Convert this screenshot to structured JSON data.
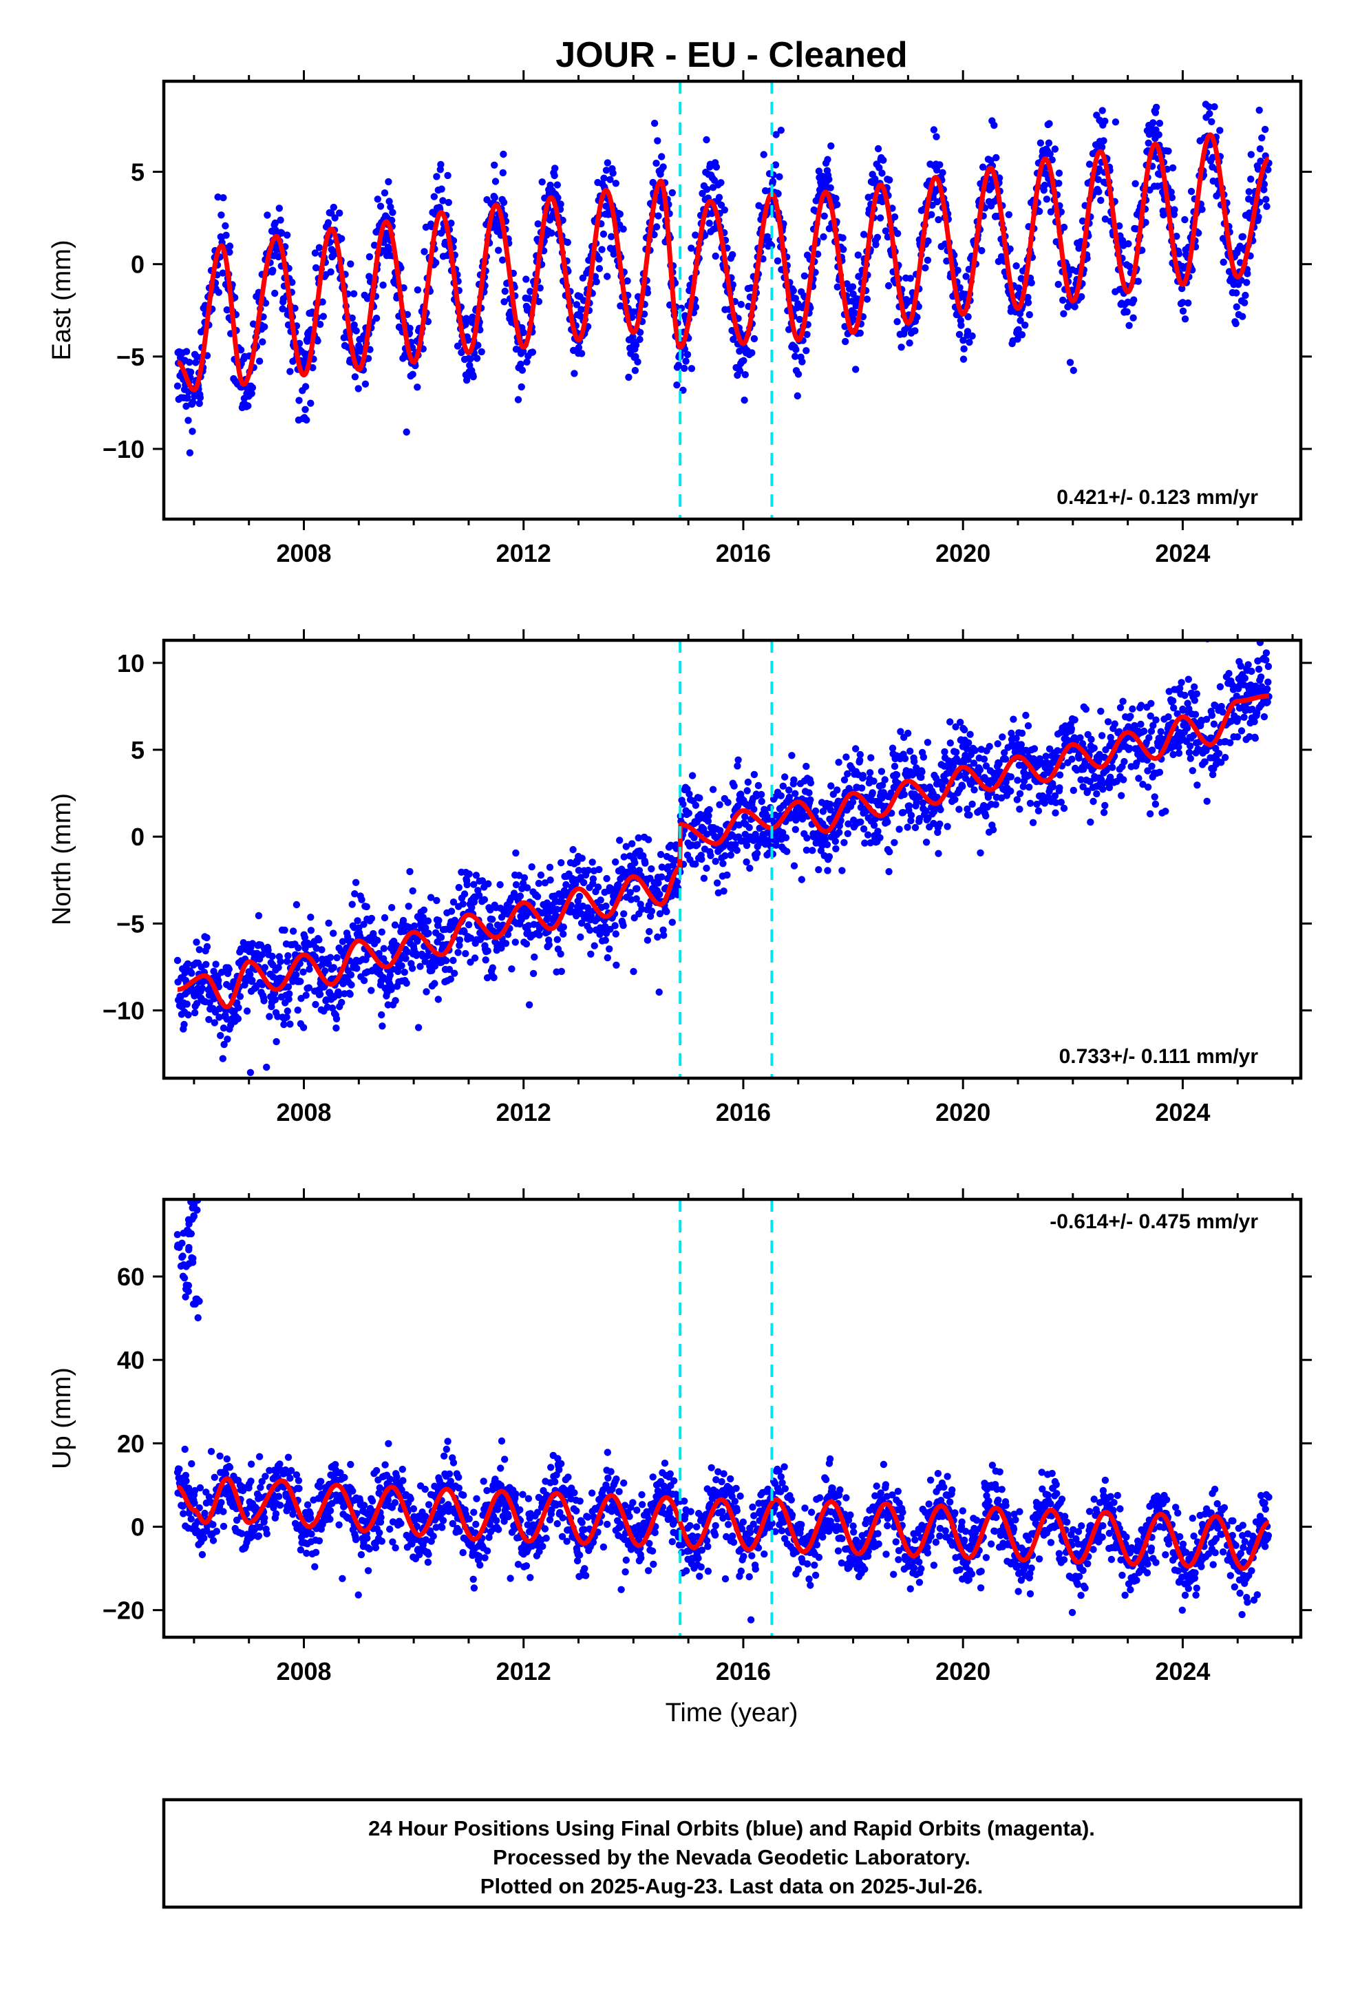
{
  "title": "JOUR  - EU - Cleaned",
  "xlabel": "Time (year)",
  "footer": {
    "lines": [
      "24 Hour Positions Using Final Orbits (blue) and Rapid Orbits (magenta).",
      "Processed by the Nevada Geodetic Laboratory.",
      "Plotted on 2025-Aug-23. Last data on 2025-Jul-26."
    ]
  },
  "colors": {
    "data": "#0000ff",
    "model": "#ff0000",
    "step": "#00e5ee",
    "frame": "#000000"
  },
  "chart_data": [
    {
      "type": "scatter",
      "ylabel": "East (mm)",
      "xlim": [
        2005.45,
        2026.15
      ],
      "ylim": [
        -13.8,
        9.9
      ],
      "xticks": [
        2008,
        2012,
        2016,
        2020,
        2024
      ],
      "yticks": [
        -10,
        -5,
        0,
        5
      ],
      "rate_label": "0.421+/- 0.123 mm/yr",
      "rate_position": "bottom-right",
      "steps": [
        2014.85,
        2016.52
      ],
      "data_start": 2005.7,
      "data_end": 2025.57,
      "model": {
        "name": "",
        "x": [
          2005.7,
          2006.0,
          2006.5,
          2006.9,
          2007.5,
          2008.0,
          2008.5,
          2009.0,
          2009.5,
          2010.0,
          2010.5,
          2011.0,
          2011.5,
          2012.0,
          2012.5,
          2013.0,
          2013.5,
          2014.0,
          2014.5,
          2014.85,
          2015.4,
          2016.0,
          2016.52,
          2017.0,
          2017.5,
          2018.0,
          2018.5,
          2019.0,
          2019.5,
          2020.0,
          2020.5,
          2021.0,
          2021.5,
          2022.0,
          2022.5,
          2023.0,
          2023.5,
          2024.0,
          2024.5,
          2025.0,
          2025.57
        ],
        "y": [
          -5.3,
          -6.8,
          1.0,
          -6.5,
          1.5,
          -6.0,
          1.9,
          -5.7,
          2.3,
          -5.3,
          2.8,
          -4.8,
          3.2,
          -4.5,
          3.6,
          -4.1,
          4.0,
          -3.7,
          4.5,
          -4.5,
          3.4,
          -4.3,
          3.8,
          -4.1,
          3.9,
          -3.7,
          4.3,
          -3.2,
          4.7,
          -2.7,
          5.2,
          -2.4,
          5.7,
          -2.0,
          6.1,
          -1.5,
          6.5,
          -1.1,
          7.0,
          -0.7,
          5.7
        ]
      }
    },
    {
      "type": "scatter",
      "ylabel": "North (mm)",
      "xlim": [
        2005.45,
        2026.15
      ],
      "ylim": [
        -13.9,
        11.3
      ],
      "xticks": [
        2008,
        2012,
        2016,
        2020,
        2024
      ],
      "yticks": [
        -10,
        -5,
        0,
        5,
        10
      ],
      "rate_label": "0.733+/- 0.111 mm/yr",
      "rate_position": "bottom-right",
      "steps": [
        2014.85,
        2016.52
      ],
      "data_start": 2005.7,
      "data_end": 2025.57,
      "model": {
        "name": "",
        "x": [
          2005.7,
          2006.2,
          2006.6,
          2007.0,
          2007.5,
          2008.0,
          2008.5,
          2009.0,
          2009.5,
          2010.0,
          2010.5,
          2011.0,
          2011.5,
          2012.0,
          2012.5,
          2013.0,
          2013.5,
          2014.0,
          2014.5,
          2014.84,
          2014.86,
          2015.5,
          2016.0,
          2016.52,
          2017.0,
          2017.5,
          2018.0,
          2018.5,
          2019.0,
          2019.5,
          2020.0,
          2020.5,
          2021.0,
          2021.5,
          2022.0,
          2022.5,
          2023.0,
          2023.5,
          2024.0,
          2024.5,
          2025.0,
          2025.57
        ],
        "y": [
          -8.8,
          -8.0,
          -9.8,
          -7.2,
          -8.8,
          -6.8,
          -8.5,
          -6.0,
          -7.5,
          -5.5,
          -6.8,
          -4.5,
          -5.8,
          -3.8,
          -5.3,
          -3.0,
          -4.6,
          -2.3,
          -3.9,
          -1.8,
          0.7,
          -0.4,
          1.5,
          0.5,
          2.0,
          0.3,
          2.5,
          1.2,
          3.2,
          1.9,
          4.0,
          2.7,
          4.6,
          3.2,
          5.3,
          4.0,
          6.0,
          4.5,
          6.9,
          5.3,
          7.8,
          8.1
        ]
      }
    },
    {
      "type": "scatter",
      "ylabel": "Up (mm)",
      "xlim": [
        2005.45,
        2026.15
      ],
      "ylim": [
        -26.5,
        78.5
      ],
      "xticks": [
        2008,
        2012,
        2016,
        2020,
        2024
      ],
      "yticks": [
        -20,
        0,
        20,
        40,
        60
      ],
      "rate_label": "-0.614+/- 0.475 mm/yr",
      "rate_position": "top-right",
      "steps": [
        2014.85,
        2016.52
      ],
      "data_start": 2005.7,
      "data_end": 2025.57,
      "model": {
        "name": "",
        "x": [
          2005.7,
          2006.0,
          2006.2,
          2006.6,
          2007.0,
          2007.6,
          2008.1,
          2008.6,
          2009.1,
          2009.6,
          2010.1,
          2010.6,
          2011.1,
          2011.6,
          2012.1,
          2012.6,
          2013.1,
          2013.6,
          2014.1,
          2014.6,
          2015.1,
          2015.6,
          2016.1,
          2016.6,
          2017.1,
          2017.6,
          2018.1,
          2018.6,
          2019.1,
          2019.6,
          2020.1,
          2020.6,
          2021.1,
          2021.6,
          2022.1,
          2022.6,
          2023.1,
          2023.6,
          2024.1,
          2024.6,
          2025.1,
          2025.57
        ],
        "y": [
          9.5,
          4.0,
          1.0,
          11.5,
          1.0,
          11.0,
          0.0,
          10.0,
          -1.0,
          9.5,
          -2.0,
          9.0,
          -3.0,
          8.5,
          -3.5,
          8.0,
          -4.0,
          7.5,
          -4.5,
          7.0,
          -5.0,
          6.5,
          -5.5,
          6.5,
          -6.0,
          6.0,
          -6.5,
          5.5,
          -7.0,
          5.0,
          -7.5,
          4.5,
          -8.0,
          4.0,
          -8.5,
          3.5,
          -9.0,
          3.0,
          -9.5,
          2.5,
          -10.0,
          1.0
        ]
      },
      "outliers": {
        "x": [
          2005.75,
          2005.8,
          2005.9,
          2006.0,
          2006.05,
          2005.85,
          2005.95,
          2006.02
        ],
        "y": [
          68,
          62,
          71,
          75,
          52,
          58,
          66,
          77
        ]
      }
    }
  ]
}
